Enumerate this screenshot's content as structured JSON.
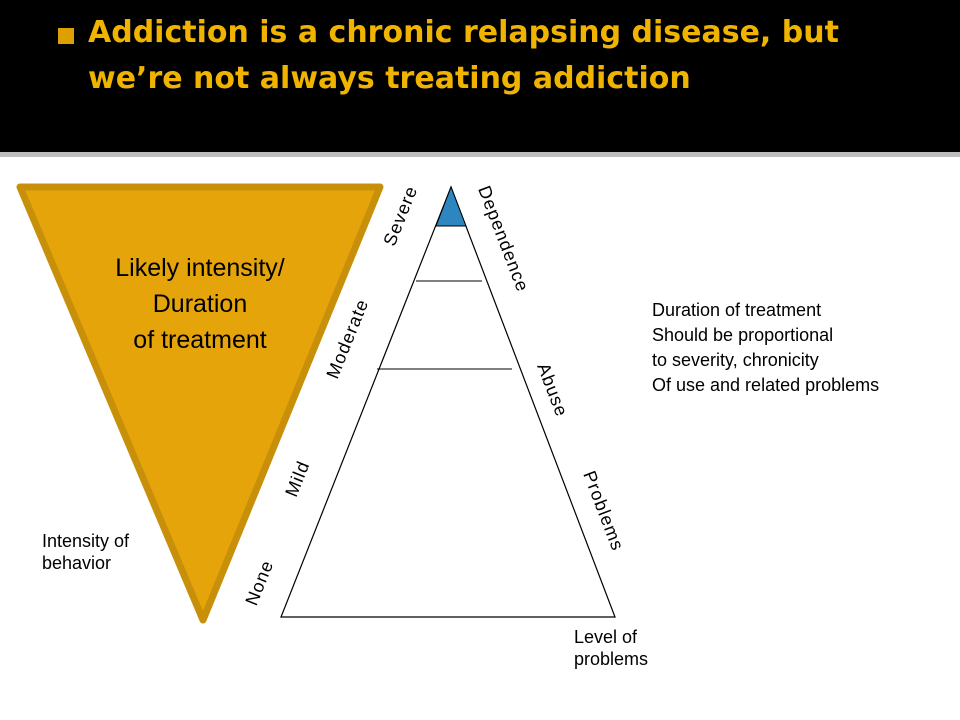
{
  "slide": {
    "title": "Addiction is a chronic relapsing disease, but we’re not always treating addiction"
  },
  "colors": {
    "accent": "#E5A50A",
    "accent_stroke": "#C8900A",
    "apex": "#2E86C1",
    "title_bar": "#000000",
    "title_text": "#F0B400"
  },
  "funnel": {
    "lines": [
      "Likely intensity/",
      "Duration",
      "of treatment"
    ]
  },
  "pyramid": {
    "left_labels": {
      "severe": "Severe",
      "moderate": "Moderate",
      "mild": "Mild",
      "none": "None"
    },
    "right_labels": {
      "dependence": "Dependence",
      "abuse": "Abuse",
      "problems": "Problems"
    }
  },
  "notes": {
    "intensity_axis": [
      "Intensity of",
      "behavior"
    ],
    "problems_axis": [
      "Level of",
      "problems"
    ],
    "treatment_note": [
      "Duration of treatment",
      "Should be proportional",
      "to severity, chronicity",
      "Of use and related problems"
    ]
  }
}
